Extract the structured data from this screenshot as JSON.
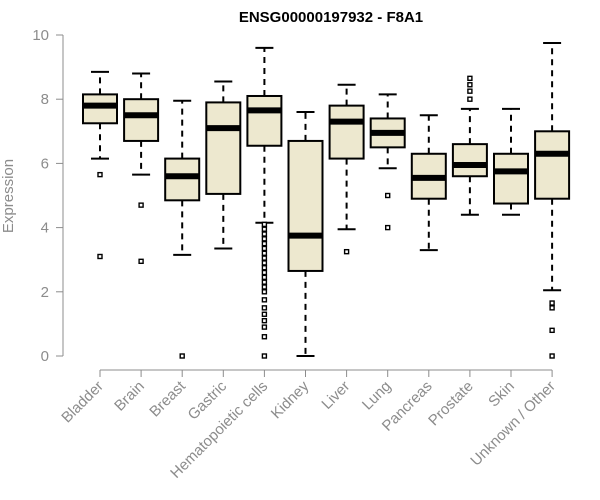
{
  "chart_data": {
    "type": "boxplot",
    "title": "ENSG00000197932 - F8A1",
    "xlabel": "",
    "ylabel": "Expression",
    "ylim": [
      0,
      10
    ],
    "yticks": [
      0,
      2,
      4,
      6,
      8,
      10
    ],
    "box_fill": "#ede8cf",
    "box_stroke": "#000000",
    "categories": [
      "Bladder",
      "Brain",
      "Breast",
      "Gastric",
      "Hematopoietic cells",
      "Kidney",
      "Liver",
      "Lung",
      "Pancreas",
      "Prostate",
      "Skin",
      "Unknown / Other"
    ],
    "boxes": [
      {
        "category": "Bladder",
        "whisker_low": 6.15,
        "q1": 7.25,
        "median": 7.8,
        "q3": 8.15,
        "whisker_high": 8.85,
        "outliers": [
          5.65,
          3.1
        ]
      },
      {
        "category": "Brain",
        "whisker_low": 5.65,
        "q1": 6.7,
        "median": 7.5,
        "q3": 8.0,
        "whisker_high": 8.8,
        "outliers": [
          4.7,
          2.95
        ]
      },
      {
        "category": "Breast",
        "whisker_low": 3.15,
        "q1": 4.85,
        "median": 5.6,
        "q3": 6.15,
        "whisker_high": 7.95,
        "outliers": [
          0.0
        ]
      },
      {
        "category": "Gastric",
        "whisker_low": 3.35,
        "q1": 5.05,
        "median": 7.1,
        "q3": 7.9,
        "whisker_high": 8.55,
        "outliers": []
      },
      {
        "category": "Hematopoietic cells",
        "whisker_low": 4.15,
        "q1": 6.55,
        "median": 7.65,
        "q3": 8.1,
        "whisker_high": 9.6,
        "outliers": [
          4.1,
          3.95,
          3.8,
          3.65,
          3.5,
          3.35,
          3.2,
          3.05,
          2.9,
          2.75,
          2.6,
          2.45,
          2.3,
          2.15,
          2.0,
          1.75,
          1.5,
          1.3,
          1.1,
          0.9,
          0.6,
          0.0
        ]
      },
      {
        "category": "Kidney",
        "whisker_low": 0.0,
        "q1": 2.65,
        "median": 3.75,
        "q3": 6.7,
        "whisker_high": 7.6,
        "outliers": []
      },
      {
        "category": "Liver",
        "whisker_low": 3.95,
        "q1": 6.15,
        "median": 7.3,
        "q3": 7.8,
        "whisker_high": 8.45,
        "outliers": [
          3.25
        ]
      },
      {
        "category": "Lung",
        "whisker_low": 5.85,
        "q1": 6.5,
        "median": 6.95,
        "q3": 7.4,
        "whisker_high": 8.15,
        "outliers": [
          5.0,
          4.0
        ]
      },
      {
        "category": "Pancreas",
        "whisker_low": 3.3,
        "q1": 4.9,
        "median": 5.55,
        "q3": 6.3,
        "whisker_high": 7.5,
        "outliers": []
      },
      {
        "category": "Prostate",
        "whisker_low": 4.4,
        "q1": 5.6,
        "median": 5.95,
        "q3": 6.6,
        "whisker_high": 7.7,
        "outliers": [
          8.0,
          8.25,
          8.45,
          8.65
        ]
      },
      {
        "category": "Skin",
        "whisker_low": 4.4,
        "q1": 4.75,
        "median": 5.75,
        "q3": 6.3,
        "whisker_high": 7.7,
        "outliers": []
      },
      {
        "category": "Unknown / Other",
        "whisker_low": 2.05,
        "q1": 4.9,
        "median": 6.3,
        "q3": 7.0,
        "whisker_high": 9.75,
        "outliers": [
          1.65,
          1.5,
          0.8,
          0.0
        ]
      }
    ]
  }
}
